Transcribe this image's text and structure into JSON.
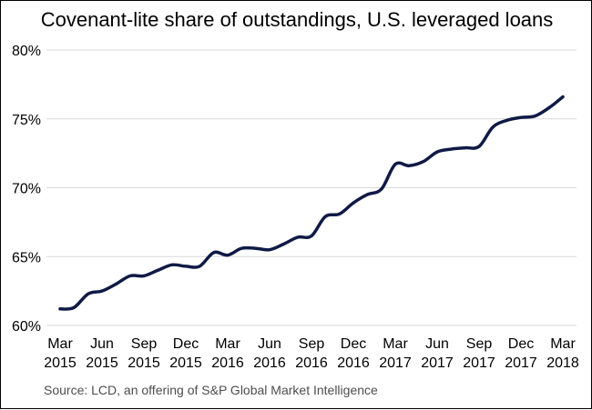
{
  "colors": {
    "line": "#0f1a45",
    "grid": "#d9d9d9",
    "text": "#000000",
    "source": "#4d4d4d"
  },
  "chart_data": {
    "type": "line",
    "title": "Covenant-lite share of outstandings, U.S. leveraged loans",
    "xlabel": "",
    "ylabel": "",
    "ylim": [
      60,
      80
    ],
    "yticks": [
      60,
      65,
      70,
      75,
      80
    ],
    "ytick_labels": [
      "60%",
      "65%",
      "70%",
      "75%",
      "80%"
    ],
    "xtick_labels": [
      [
        "Mar",
        "2015"
      ],
      [
        "Jun",
        "2015"
      ],
      [
        "Sep",
        "2015"
      ],
      [
        "Dec",
        "2015"
      ],
      [
        "Mar",
        "2016"
      ],
      [
        "Jun",
        "2016"
      ],
      [
        "Sep",
        "2016"
      ],
      [
        "Dec",
        "2016"
      ],
      [
        "Mar",
        "2017"
      ],
      [
        "Jun",
        "2017"
      ],
      [
        "Sep",
        "2017"
      ],
      [
        "Dec",
        "2017"
      ],
      [
        "Mar",
        "2018"
      ]
    ],
    "grid": true,
    "series": [
      {
        "name": "Covenant-lite share",
        "x": [
          0,
          0.33,
          0.67,
          1,
          1.33,
          1.67,
          2,
          2.33,
          2.67,
          3,
          3.33,
          3.67,
          4,
          4.33,
          4.67,
          5,
          5.33,
          5.67,
          6,
          6.33,
          6.67,
          7,
          7.33,
          7.67,
          8,
          8.33,
          8.67,
          9,
          9.33,
          9.67,
          10,
          10.33,
          10.67,
          11,
          11.33,
          11.67,
          12
        ],
        "values": [
          61.2,
          61.3,
          62.3,
          62.5,
          63.0,
          63.6,
          63.6,
          64.0,
          64.4,
          64.3,
          64.3,
          65.3,
          65.1,
          65.6,
          65.6,
          65.5,
          65.9,
          66.4,
          66.5,
          67.9,
          68.1,
          68.9,
          69.5,
          69.9,
          71.7,
          71.6,
          71.9,
          72.6,
          72.8,
          72.9,
          73.0,
          74.4,
          74.9,
          75.1,
          75.2,
          75.8,
          76.6
        ]
      }
    ]
  },
  "source": "Source: LCD, an offering of S&P Global Market Intelligence"
}
